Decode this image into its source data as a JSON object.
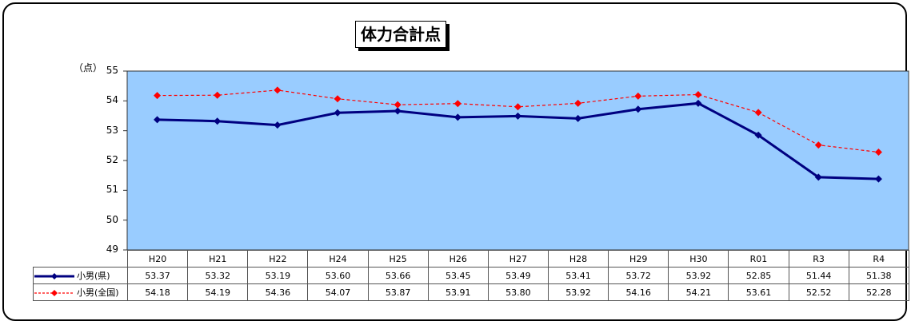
{
  "chart_data": {
    "type": "line",
    "title": "体力合計点",
    "ylabel": "（点）",
    "ylim": [
      49,
      55
    ],
    "yticks": [
      "49",
      "50",
      "51",
      "52",
      "53",
      "54",
      "55"
    ],
    "grid": false,
    "legend": "table-left",
    "categories": [
      "H20",
      "H21",
      "H22",
      "H24",
      "H25",
      "H26",
      "H27",
      "H28",
      "H29",
      "H30",
      "R01",
      "R3",
      "R4"
    ],
    "series": [
      {
        "name": "小男(県)",
        "color": "#000080",
        "style": "solid",
        "values": [
          53.37,
          53.32,
          53.19,
          53.6,
          53.66,
          53.45,
          53.49,
          53.41,
          53.72,
          53.92,
          52.85,
          51.44,
          51.38
        ],
        "labels": [
          "53.37",
          "53.32",
          "53.19",
          "53.60",
          "53.66",
          "53.45",
          "53.49",
          "53.41",
          "53.72",
          "53.92",
          "52.85",
          "51.44",
          "51.38"
        ]
      },
      {
        "name": "小男(全国)",
        "color": "#ff0000",
        "style": "dashed",
        "values": [
          54.18,
          54.19,
          54.36,
          54.07,
          53.87,
          53.91,
          53.8,
          53.92,
          54.16,
          54.21,
          53.61,
          52.52,
          52.28
        ],
        "labels": [
          "54.18",
          "54.19",
          "54.36",
          "54.07",
          "53.87",
          "53.91",
          "53.80",
          "53.92",
          "54.16",
          "54.21",
          "53.61",
          "52.52",
          "52.28"
        ]
      }
    ],
    "plot_background": "#99ccff"
  }
}
